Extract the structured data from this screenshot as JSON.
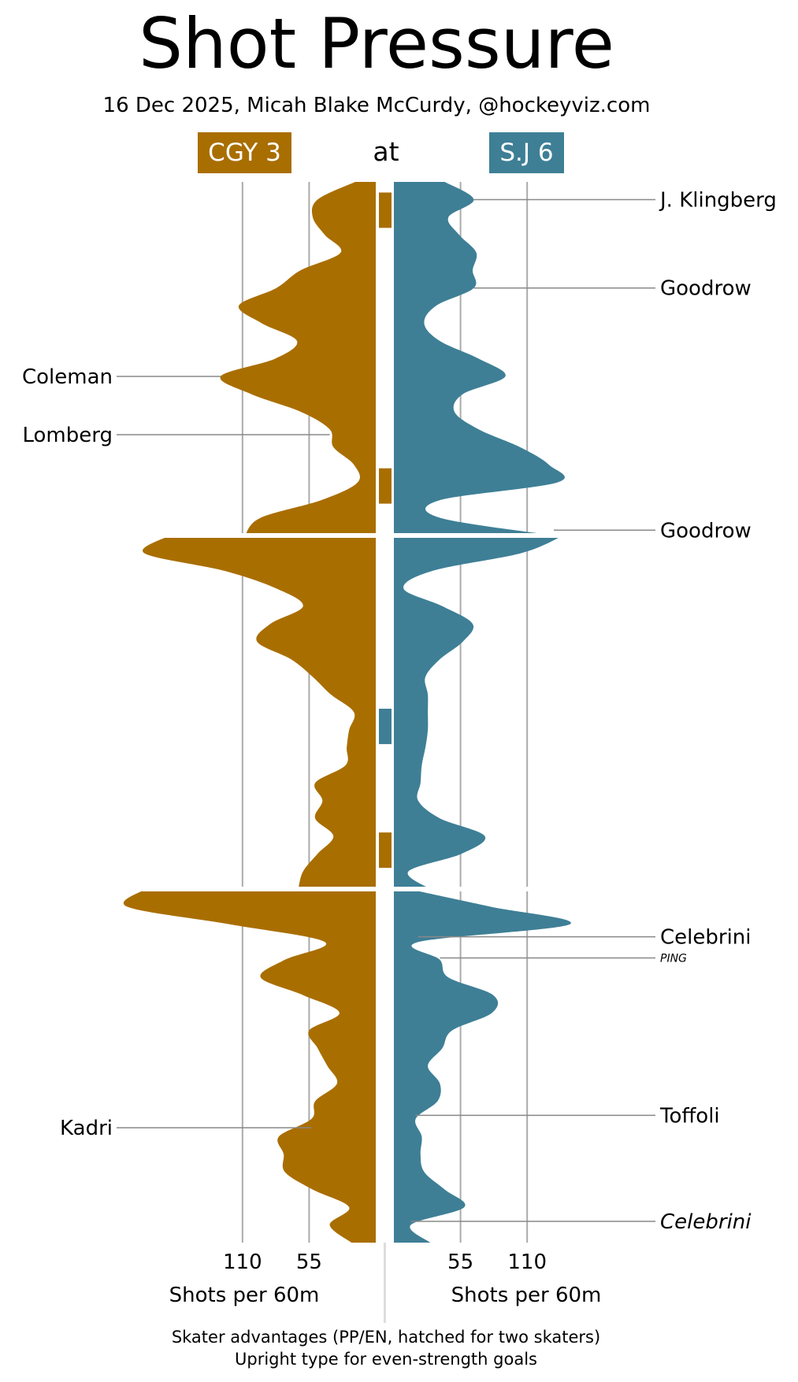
{
  "title": "Shot Pressure",
  "subtitle": "16 Dec 2025, Micah Blake McCurdy, @hockeyviz.com",
  "at_label": "at",
  "colors": {
    "away": "#a96e00",
    "home": "#3e7f96",
    "grid": "#aaaaaa",
    "label_line": "#888888",
    "text": "#000000"
  },
  "teams": {
    "away": {
      "label": "CGY 3"
    },
    "home": {
      "label": "S.J 6"
    }
  },
  "footnote": {
    "line1": "Skater advantages (PP/EN, hatched for two skaters)",
    "line2": "Upright type for even-strength goals"
  },
  "chart_data": {
    "type": "area",
    "x_unit": "game minutes",
    "x_range": [
      0,
      60
    ],
    "periods": 3,
    "value_unit": "Shots per 60m",
    "xlabel_away": "Shots per 60m",
    "xlabel_home": "Shots per 60m",
    "ticks_away": [
      110,
      55
    ],
    "ticks_home": [
      55,
      110
    ],
    "value_max": 205,
    "series": [
      {
        "name": "CGY 3",
        "side": "away",
        "minutes": [
          0,
          1,
          2,
          3,
          4,
          5,
          6,
          7,
          8,
          9,
          10,
          11,
          12,
          13,
          14,
          15,
          16,
          17,
          18,
          19,
          20,
          20,
          21,
          22,
          23,
          24,
          25,
          26,
          27,
          28,
          29,
          30,
          31,
          32,
          33,
          34,
          35,
          36,
          37,
          38,
          39,
          40,
          40,
          41,
          42,
          43,
          44,
          45,
          46,
          47,
          48,
          49,
          50,
          51,
          52,
          53,
          54,
          55,
          56,
          57,
          58,
          59,
          60
        ],
        "values": [
          17,
          48,
          52,
          42,
          29,
          62,
          82,
          113,
          94,
          65,
          83,
          128,
          103,
          62,
          38,
          35,
          18,
          15,
          45,
          95,
          108,
          170,
          191,
          125,
          82,
          60,
          87,
          98,
          70,
          52,
          37,
          18,
          22,
          24,
          25,
          50,
          44,
          50,
          35,
          48,
          60,
          64,
          190,
          205,
          120,
          42,
          75,
          95,
          60,
          30,
          55,
          48,
          40,
          32,
          50,
          53,
          80,
          76,
          75,
          52,
          22,
          38,
          20
        ]
      },
      {
        "name": "S.J 6",
        "side": "home",
        "minutes": [
          0,
          1,
          2,
          3,
          4,
          5,
          6,
          7,
          8,
          9,
          10,
          11,
          12,
          13,
          14,
          15,
          16,
          17,
          18,
          19,
          20,
          20,
          21,
          22,
          23,
          24,
          25,
          26,
          27,
          28,
          29,
          30,
          31,
          32,
          33,
          34,
          35,
          36,
          37,
          38,
          39,
          40,
          40,
          41,
          42,
          43,
          44,
          45,
          46,
          47,
          48,
          49,
          50,
          51,
          52,
          53,
          54,
          55,
          56,
          57,
          58,
          59,
          60
        ],
        "values": [
          42,
          66,
          45,
          54,
          68,
          65,
          66,
          35,
          25,
          38,
          70,
          92,
          57,
          50,
          70,
          104,
          128,
          135,
          38,
          38,
          132,
          140,
          105,
          32,
          8,
          40,
          65,
          57,
          38,
          26,
          28,
          28,
          28,
          26,
          23,
          22,
          20,
          38,
          75,
          56,
          12,
          30,
          12,
          80,
          145,
          20,
          38,
          45,
          82,
          81,
          48,
          40,
          28,
          38,
          36,
          18,
          23,
          22,
          25,
          42,
          58,
          14,
          30
        ]
      }
    ],
    "skater_advantages": [
      {
        "team": "CGY 3",
        "start_minute": 0.6,
        "end_minute": 2.6
      },
      {
        "team": "CGY 3",
        "start_minute": 16.2,
        "end_minute": 18.2
      },
      {
        "team": "S.J 6",
        "start_minute": 29.8,
        "end_minute": 31.8
      },
      {
        "team": "CGY 3",
        "start_minute": 36.8,
        "end_minute": 38.8
      }
    ],
    "goals": [
      {
        "team": "S.J 6",
        "player": "J. Klingberg",
        "minute": 1.0,
        "even_strength": true
      },
      {
        "team": "S.J 6",
        "player": "Goodrow",
        "minute": 6.0,
        "even_strength": true
      },
      {
        "team": "CGY 3",
        "player": "Coleman",
        "minute": 11.0,
        "even_strength": true
      },
      {
        "team": "CGY 3",
        "player": "Lomberg",
        "minute": 14.3,
        "even_strength": true
      },
      {
        "team": "S.J 6",
        "player": "Goodrow",
        "minute": 19.7,
        "even_strength": true
      },
      {
        "team": "S.J 6",
        "player": "Celebrini",
        "minute": 42.7,
        "even_strength": true
      },
      {
        "team": "S.J 6",
        "player": "PING",
        "minute": 43.9,
        "even_strength": true,
        "small_label": true
      },
      {
        "team": "S.J 6",
        "player": "Toffoli",
        "minute": 52.8,
        "even_strength": true
      },
      {
        "team": "CGY 3",
        "player": "Kadri",
        "minute": 53.5,
        "even_strength": true
      },
      {
        "team": "S.J 6",
        "player": "Celebrini",
        "minute": 58.8,
        "even_strength": false
      }
    ]
  }
}
